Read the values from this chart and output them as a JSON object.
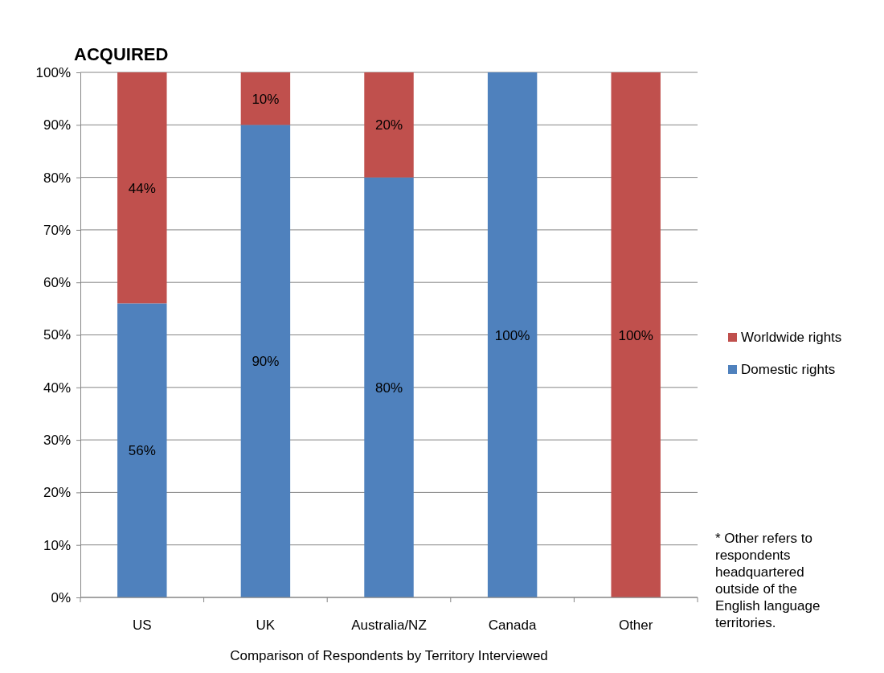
{
  "chart_data": {
    "type": "bar",
    "title": "ACQUIRED",
    "xlabel": "Comparison of Respondents by Territory Interviewed",
    "categories": [
      "US",
      "UK",
      "Australia/NZ",
      "Canada",
      "Other"
    ],
    "stacked": true,
    "series": [
      {
        "name": "Domestic rights",
        "color": "#4f81bd",
        "values": [
          56,
          90,
          80,
          100,
          0
        ],
        "value_labels": [
          "56%",
          "90%",
          "80%",
          "100%",
          null
        ]
      },
      {
        "name": "Worldwide rights",
        "color": "#c0504d",
        "values": [
          44,
          10,
          20,
          0,
          100
        ],
        "value_labels": [
          "44%",
          "10%",
          "20%",
          null,
          "100%"
        ]
      }
    ],
    "ylim": [
      0,
      100
    ],
    "yticks": [
      {
        "value": 0,
        "label": "0%"
      },
      {
        "value": 10,
        "label": "10%"
      },
      {
        "value": 20,
        "label": "20%"
      },
      {
        "value": 30,
        "label": "30%"
      },
      {
        "value": 40,
        "label": "40%"
      },
      {
        "value": 50,
        "label": "50%"
      },
      {
        "value": 60,
        "label": "60%"
      },
      {
        "value": 70,
        "label": "70%"
      },
      {
        "value": 80,
        "label": "80%"
      },
      {
        "value": 90,
        "label": "90%"
      },
      {
        "value": 100,
        "label": "100%"
      }
    ],
    "grid": "y",
    "legend": "right",
    "annotations": [
      "* Other refers to respondents headquartered outside of the English language territories."
    ]
  }
}
